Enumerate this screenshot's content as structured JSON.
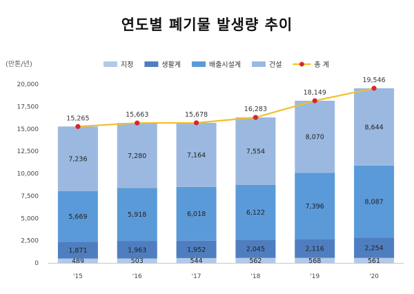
{
  "chart_data": {
    "type": "bar",
    "title": "연도별 폐기물 발생량 추이",
    "unit_label": "(만톤/년)",
    "categories": [
      "'15",
      "'16",
      "'17",
      "'18",
      "'19",
      "'20"
    ],
    "ylim": [
      0,
      20000
    ],
    "yticks": [
      "0",
      "2,500",
      "5,000",
      "7,500",
      "10,000",
      "12,500",
      "15,000",
      "17,500",
      "20,000"
    ],
    "stacked": true,
    "series": [
      {
        "name": "지정",
        "values": [
          489,
          503,
          544,
          562,
          568,
          561
        ],
        "labels": [
          "489",
          "503",
          "544",
          "562",
          "568",
          "561"
        ],
        "color": "#b3c9e8"
      },
      {
        "name": "생활계",
        "values": [
          1871,
          1963,
          1952,
          2045,
          2116,
          2254
        ],
        "labels": [
          "1,871",
          "1,963",
          "1,952",
          "2,045",
          "2,116",
          "2,254"
        ],
        "color": "#4f7ec0"
      },
      {
        "name": "배출시설계",
        "values": [
          5669,
          5918,
          6018,
          6122,
          7396,
          8087
        ],
        "labels": [
          "5,669",
          "5,918",
          "6,018",
          "6,122",
          "7,396",
          "8,087"
        ],
        "color": "#5b9ad8"
      },
      {
        "name": "건설",
        "values": [
          7236,
          7280,
          7164,
          7554,
          8070,
          8644
        ],
        "labels": [
          "7,236",
          "7,280",
          "7,164",
          "7,554",
          "8,070",
          "8,644"
        ],
        "color": "#9bb9e0"
      }
    ],
    "total": {
      "name": "총 계",
      "values": [
        15265,
        15663,
        15678,
        16283,
        18149,
        19546
      ],
      "labels": [
        "15,265",
        "15,663",
        "15,678",
        "16,283",
        "18,149",
        "19,546"
      ],
      "line_color": "#f2bf2a",
      "marker_color": "#d9262c"
    },
    "legend_position": "top",
    "grid": false
  }
}
